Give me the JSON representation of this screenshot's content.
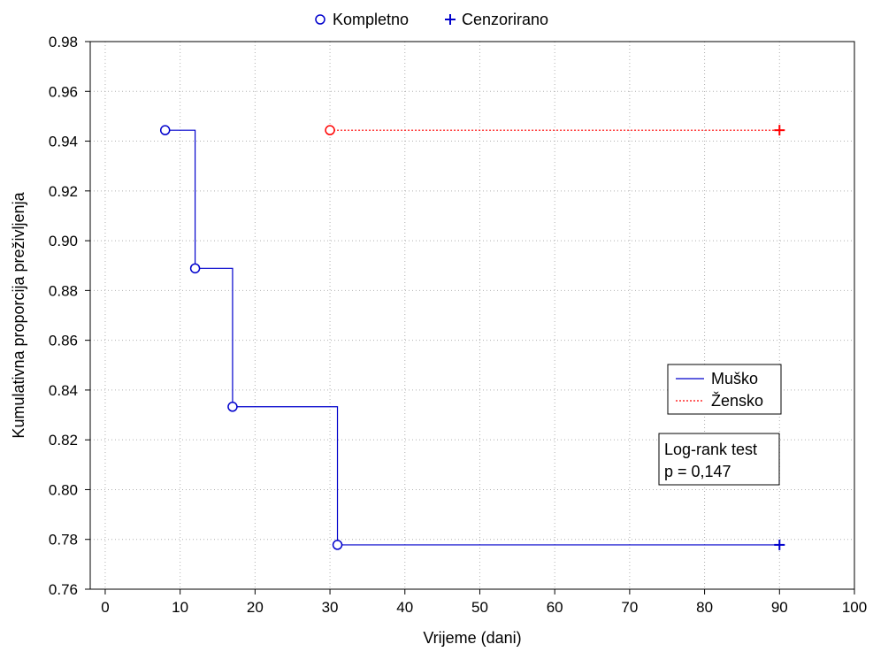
{
  "chart_data": {
    "type": "line",
    "step": true,
    "xlabel": "Vrijeme (dani)",
    "ylabel": "Kumulativna proporcija preživljenja",
    "xlim": [
      -2,
      100
    ],
    "ylim": [
      0.76,
      0.98
    ],
    "xticks": [
      0,
      10,
      20,
      30,
      40,
      50,
      60,
      70,
      80,
      90,
      100
    ],
    "yticks": [
      0.76,
      0.78,
      0.8,
      0.82,
      0.84,
      0.86,
      0.88,
      0.9,
      0.92,
      0.94,
      0.96,
      0.98
    ],
    "xtick_labels": [
      "0",
      "10",
      "20",
      "30",
      "40",
      "50",
      "60",
      "70",
      "80",
      "90",
      "100"
    ],
    "ytick_labels": [
      "0.76",
      "0.78",
      "0.80",
      "0.82",
      "0.84",
      "0.86",
      "0.88",
      "0.90",
      "0.92",
      "0.94",
      "0.96",
      "0.98"
    ],
    "grid": true,
    "marker_legend": {
      "placement": "top",
      "complete_label": "Kompletno",
      "censored_label": "Cenzorirano"
    },
    "series_legend_placement": "right",
    "series": [
      {
        "name": "Muško",
        "color": "#0000cc",
        "dash": "solid",
        "complete": [
          {
            "x": 8,
            "y": 0.9444
          },
          {
            "x": 12,
            "y": 0.8889
          },
          {
            "x": 17,
            "y": 0.8333
          },
          {
            "x": 31,
            "y": 0.7778
          }
        ],
        "censored": [
          {
            "x": 90,
            "y": 0.7778
          }
        ]
      },
      {
        "name": "Žensko",
        "color": "#ff0000",
        "dash": "dotted",
        "complete": [
          {
            "x": 30,
            "y": 0.9444
          }
        ],
        "censored": [
          {
            "x": 90,
            "y": 0.9444
          }
        ]
      }
    ],
    "annotation": {
      "line1": "Log-rank test",
      "line2": "p = 0,147"
    }
  }
}
